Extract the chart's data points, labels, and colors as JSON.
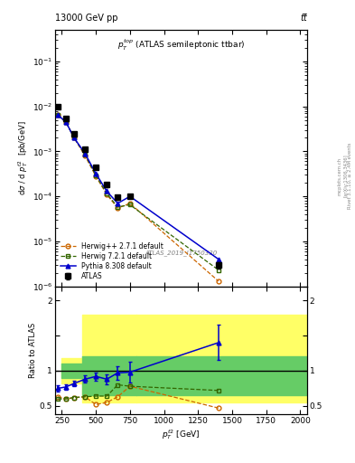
{
  "title_top": "13000 GeV pp",
  "title_right": "tt̅",
  "annotation": "ATLAS_2019_I1750330",
  "panel_title": "$p_T^{top}$ (ATLAS semileptonic ttbar)",
  "ylabel_main": "d$\\sigma$ / d $p_T^{t2}$  [pb/GeV]",
  "ylabel_ratio": "Ratio to ATLAS",
  "xlabel": "$p_T^{t2}$ [GeV]",
  "right_label1": "Rivet 3.1.10, ≥ 2.4M events",
  "right_label2": "[arXiv:1306.3436]",
  "right_label3": "mcplots.cern.ch",
  "atlas_x": [
    220,
    280,
    340,
    420,
    500,
    580,
    660,
    750,
    1400
  ],
  "atlas_y": [
    0.01,
    0.0055,
    0.0025,
    0.0011,
    0.00045,
    0.00018,
    9.5e-05,
    0.0001,
    3e-06
  ],
  "atlas_yerr_lo": [
    0.0008,
    0.0004,
    0.0002,
    0.0001,
    4e-05,
    2e-05,
    1e-05,
    1e-05,
    5e-07
  ],
  "atlas_yerr_hi": [
    0.0008,
    0.0004,
    0.0002,
    0.0001,
    4e-05,
    2e-05,
    1e-05,
    1e-05,
    5e-07
  ],
  "herwig_x": [
    220,
    280,
    340,
    420,
    500,
    580,
    660,
    750,
    1400
  ],
  "herwig_y": [
    0.0065,
    0.0045,
    0.002,
    0.0008,
    0.00028,
    0.00011,
    5.5e-05,
    7e-05,
    1.3e-06
  ],
  "herwig721_x": [
    220,
    280,
    340,
    420,
    500,
    580,
    660,
    750,
    1400
  ],
  "herwig721_y": [
    0.0065,
    0.0045,
    0.002,
    0.00085,
    0.00029,
    0.000115,
    5.8e-05,
    6.5e-05,
    2.3e-06
  ],
  "pythia_x": [
    220,
    280,
    340,
    420,
    500,
    580,
    660,
    750,
    1400
  ],
  "pythia_y": [
    0.0065,
    0.0045,
    0.002,
    0.0009,
    0.00032,
    0.00013,
    7e-05,
    0.0001,
    4e-06
  ],
  "ratio_pythia_x": [
    220,
    280,
    340,
    420,
    500,
    580,
    660,
    750,
    1400
  ],
  "ratio_pythia_y": [
    0.75,
    0.77,
    0.82,
    0.88,
    0.92,
    0.88,
    0.97,
    0.98,
    1.4
  ],
  "ratio_pythia_yerr": [
    0.05,
    0.04,
    0.04,
    0.05,
    0.06,
    0.07,
    0.1,
    0.15,
    0.25
  ],
  "ratio_herwig_x": [
    220,
    280,
    340,
    420,
    500,
    580,
    660,
    750,
    1400
  ],
  "ratio_herwig_y": [
    0.63,
    0.6,
    0.62,
    0.63,
    0.52,
    0.55,
    0.63,
    0.78,
    0.47
  ],
  "ratio_herwig721_x": [
    220,
    280,
    340,
    420,
    500,
    580,
    660,
    750,
    1400
  ],
  "ratio_herwig721_y": [
    0.6,
    0.6,
    0.62,
    0.63,
    0.64,
    0.64,
    0.8,
    0.78,
    0.72
  ],
  "yellow_band_edges": [
    250,
    400,
    800,
    2050
  ],
  "yellow_band_lo": [
    0.82,
    0.55,
    0.55,
    0.55
  ],
  "yellow_band_hi": [
    1.18,
    1.8,
    1.8,
    1.8
  ],
  "green_band_edges": [
    250,
    400,
    800,
    2050
  ],
  "green_band_lo": [
    0.9,
    0.65,
    0.65,
    0.65
  ],
  "green_band_hi": [
    1.1,
    1.2,
    1.2,
    1.2
  ],
  "color_atlas": "#000000",
  "color_herwig": "#cc6600",
  "color_herwig721": "#336600",
  "color_pythia": "#0000cc",
  "color_green_band": "#66cc66",
  "color_yellow_band": "#ffff66",
  "main_ylim": [
    1e-06,
    0.5
  ],
  "ratio_ylim": [
    0.38,
    2.2
  ],
  "xlim": [
    200,
    2050
  ]
}
